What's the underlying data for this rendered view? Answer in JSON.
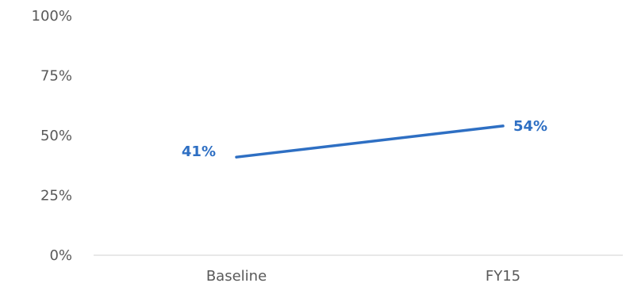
{
  "chart_data": {
    "type": "line",
    "categories": [
      "Baseline",
      "FY15"
    ],
    "series": [
      {
        "values": [
          41,
          54
        ],
        "data_labels": [
          "41%",
          "54%"
        ]
      }
    ],
    "y_ticks": [
      0,
      25,
      50,
      75,
      100
    ],
    "y_tick_labels": [
      "0%",
      "25%",
      "50%",
      "75%",
      "100%"
    ],
    "ylim": [
      0,
      100
    ],
    "grid": false,
    "legend": "none",
    "colors": {
      "line": "#2e6fc3",
      "data_label": "#2e6fc3",
      "tick_label": "#595959",
      "axis": "#d9d9d9"
    }
  }
}
